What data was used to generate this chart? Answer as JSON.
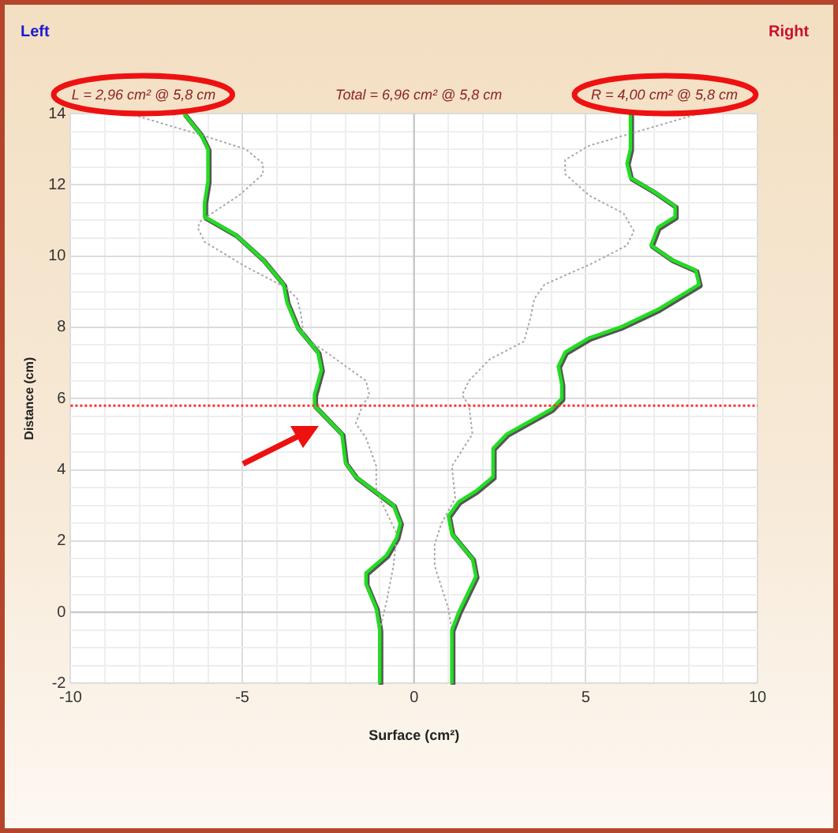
{
  "chart_data": {
    "type": "line",
    "xlabel": "Surface (cm²)",
    "ylabel": "Distance (cm)",
    "annotations": [
      "Left",
      "Right",
      "L = 2,96 cm² @ 5,8 cm",
      "Total = 6,96 cm² @ 5,8 cm",
      "R = 4,00 cm² @ 5,8 cm"
    ],
    "xlim": [
      -10,
      10
    ],
    "xticks": [
      -10,
      {
        "value": -9,
        "label": null
      },
      {
        "value": -8,
        "label": null
      },
      {
        "value": -7,
        "label": null
      },
      {
        "value": -6,
        "label": null
      },
      -5,
      {
        "value": -4,
        "label": null
      },
      {
        "value": -3,
        "label": null
      },
      {
        "value": -2,
        "label": null
      },
      {
        "value": -1,
        "label": null
      },
      0,
      {
        "value": 1,
        "label": null
      },
      {
        "value": 2,
        "label": null
      },
      {
        "value": 3,
        "label": null
      },
      {
        "value": 4,
        "label": null
      },
      5,
      {
        "value": 6,
        "label": null
      },
      {
        "value": 7,
        "label": null
      },
      {
        "value": 8,
        "label": null
      },
      {
        "value": 9,
        "label": null
      },
      10
    ],
    "ylim": [
      -2,
      14
    ],
    "yticks": [
      -2,
      {
        "value": -1.5,
        "label": null
      },
      {
        "value": -1,
        "label": null
      },
      {
        "value": -0.5,
        "label": null
      },
      0,
      {
        "value": 0.5,
        "label": null
      },
      {
        "value": 1,
        "label": null
      },
      {
        "value": 1.5,
        "label": null
      },
      2,
      {
        "value": 2.5,
        "label": null
      },
      {
        "value": 3,
        "label": null
      },
      {
        "value": 3.5,
        "label": null
      },
      4,
      {
        "value": 4.5,
        "label": null
      },
      {
        "value": 5,
        "label": null
      },
      {
        "value": 5.5,
        "label": null
      },
      6,
      {
        "value": 6.5,
        "label": null
      },
      {
        "value": 7,
        "label": null
      },
      {
        "value": 7.5,
        "label": null
      },
      8,
      {
        "value": 8.5,
        "label": null
      },
      {
        "value": 9,
        "label": null
      },
      {
        "value": 9.5,
        "label": null
      },
      10,
      {
        "value": 10.5,
        "label": null
      },
      {
        "value": 11,
        "label": null
      },
      {
        "value": 11.5,
        "label": null
      },
      12,
      {
        "value": 12.5,
        "label": null
      },
      {
        "value": 13,
        "label": null
      },
      {
        "value": 13.5,
        "label": null
      },
      14
    ],
    "grid": true,
    "legend": false,
    "marker": "none",
    "ref_lines": [
      {
        "axis": "y",
        "value": 5.8,
        "color": "#ff3030",
        "line_style": "dotted"
      }
    ],
    "series": [
      {
        "color": "#aaaaaa",
        "line_style": "dotted",
        "x": [
          -8.3,
          -6.2,
          -4.9,
          -4.4,
          -4.4,
          -5.1,
          -6.2,
          -6.3,
          -6.1,
          -4.9,
          -3.7,
          -3.4,
          -3.3,
          -3.2,
          -2.7,
          -1.4,
          -1.3,
          -1.5,
          -1.7,
          -1.4,
          -1.1,
          -1.1,
          -0.8,
          -0.5,
          -0.6,
          -0.8,
          -1.0
        ],
        "values": [
          14,
          13.4,
          13.0,
          12.6,
          12.3,
          11.7,
          11.0,
          10.8,
          10.4,
          9.7,
          9.1,
          8.8,
          8.4,
          7.7,
          7.4,
          6.5,
          6.1,
          5.8,
          5.3,
          4.9,
          4.1,
          3.4,
          2.8,
          2.2,
          1.3,
          0.3,
          -0.5
        ]
      },
      {
        "color": "#aaaaaa",
        "line_style": "dotted",
        "x": [
          8.3,
          5.1,
          4.4,
          4.4,
          5.1,
          6.1,
          6.4,
          6.2,
          5.2,
          3.8,
          3.5,
          3.4,
          3.2,
          2.2,
          1.6,
          1.4,
          1.6,
          1.7,
          1.1,
          1.2,
          0.8,
          0.6,
          0.6,
          1.0,
          1.1,
          1.1
        ],
        "values": [
          14,
          13.1,
          12.7,
          12.3,
          11.7,
          11.2,
          10.7,
          10.3,
          9.8,
          9.2,
          8.8,
          8.3,
          7.6,
          7.1,
          6.5,
          6.1,
          5.8,
          5.0,
          4.1,
          3.2,
          2.5,
          1.9,
          1.3,
          0.1,
          -0.5,
          -2
        ]
      },
      {
        "color": "#22dd22",
        "line_style": "solid",
        "x": [
          -6.7,
          -6.2,
          -6.0,
          -6.0,
          -6.1,
          -6.1,
          -5.2,
          -4.4,
          -3.8,
          -3.7,
          -3.4,
          -2.8,
          -2.7,
          -2.9,
          -2.9,
          -2.1,
          -2.0,
          -1.7,
          -0.6,
          -0.4,
          -0.5,
          -0.8,
          -1.4,
          -1.4,
          -1.1,
          -1.0,
          -1.0
        ],
        "values": [
          14,
          13.4,
          13.0,
          12.1,
          11.5,
          11.1,
          10.6,
          9.9,
          9.2,
          8.7,
          8.0,
          7.3,
          6.8,
          6.1,
          5.8,
          5.0,
          4.2,
          3.8,
          3.0,
          2.5,
          2.1,
          1.6,
          1.1,
          0.8,
          0.1,
          -0.5,
          -2
        ]
      },
      {
        "color": "#22dd22",
        "line_style": "solid",
        "x": [
          6.3,
          6.3,
          6.2,
          6.3,
          7.0,
          7.6,
          7.6,
          7.1,
          6.9,
          7.5,
          8.2,
          8.3,
          7.1,
          6.0,
          5.1,
          4.4,
          4.2,
          4.3,
          4.3,
          4.0,
          2.7,
          2.3,
          2.3,
          1.8,
          1.3,
          1.0,
          1.1,
          1.7,
          1.8,
          1.3,
          1.1,
          1.1
        ],
        "values": [
          14,
          13.0,
          12.6,
          12.2,
          11.8,
          11.4,
          11.1,
          10.8,
          10.3,
          9.9,
          9.6,
          9.2,
          8.5,
          8.0,
          7.7,
          7.3,
          6.9,
          6.4,
          6.0,
          5.7,
          5.0,
          4.6,
          3.8,
          3.4,
          3.1,
          2.7,
          2.2,
          1.5,
          1.0,
          0.0,
          -0.5,
          -2
        ]
      }
    ]
  }
}
